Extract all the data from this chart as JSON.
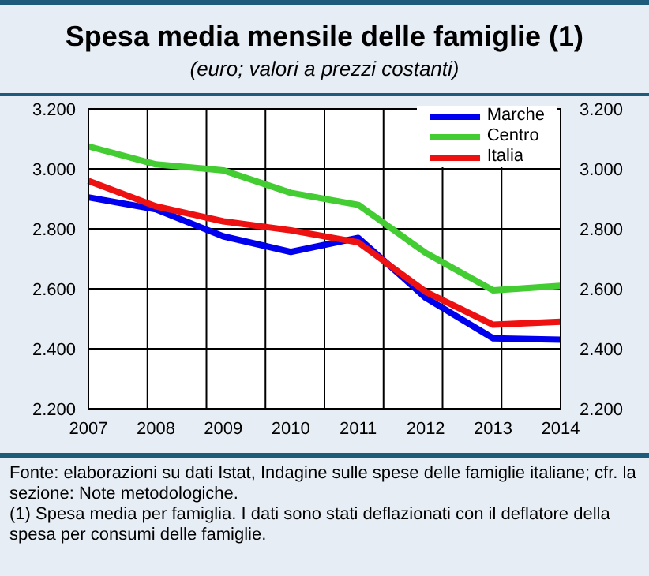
{
  "chart_data": {
    "type": "line",
    "title": "Spesa media mensile delle famiglie (1)",
    "subtitle": "(euro; valori a prezzi costanti)",
    "categories": [
      "2007",
      "2008",
      "2009",
      "2010",
      "2011",
      "2012",
      "2013",
      "2014"
    ],
    "series": [
      {
        "name": "Marche",
        "color": "#0000ee",
        "values": [
          2905,
          2865,
          2775,
          2723,
          2770,
          2570,
          2435,
          2430
        ]
      },
      {
        "name": "Centro",
        "color": "#44cc33",
        "values": [
          3075,
          3015,
          2995,
          2920,
          2880,
          2720,
          2595,
          2610
        ]
      },
      {
        "name": "Italia",
        "color": "#ee1111",
        "values": [
          2960,
          2875,
          2825,
          2795,
          2755,
          2590,
          2480,
          2490
        ]
      }
    ],
    "ylim": [
      2200,
      3200
    ],
    "yticks": [
      {
        "value": 2200,
        "label": "2.200"
      },
      {
        "value": 2400,
        "label": "2.400"
      },
      {
        "value": 2600,
        "label": "2.600"
      },
      {
        "value": 2800,
        "label": "2.800"
      },
      {
        "value": 3000,
        "label": "3.000"
      },
      {
        "value": 3200,
        "label": "3.200"
      }
    ],
    "y2lim": [
      2200,
      3200
    ],
    "y2ticks": [
      {
        "value": 2200,
        "label": "2.200"
      },
      {
        "value": 2400,
        "label": "2.400"
      },
      {
        "value": 2600,
        "label": "2.600"
      },
      {
        "value": 2800,
        "label": "2.800"
      },
      {
        "value": 3000,
        "label": "3.000"
      },
      {
        "value": 3200,
        "label": "3.200"
      }
    ],
    "grid": true,
    "legend": "top right",
    "marker": "none",
    "line_style": "solid",
    "annotations": [
      "Fonte: elaborazioni su dati Istat, Indagine sulle spese delle famiglie italiane; cfr. la sezione: Note metodologiche.",
      "(1) Spesa media per famiglia. I dati sono stati deflazionati con il deflatore della spesa per consumi delle famiglie."
    ]
  }
}
